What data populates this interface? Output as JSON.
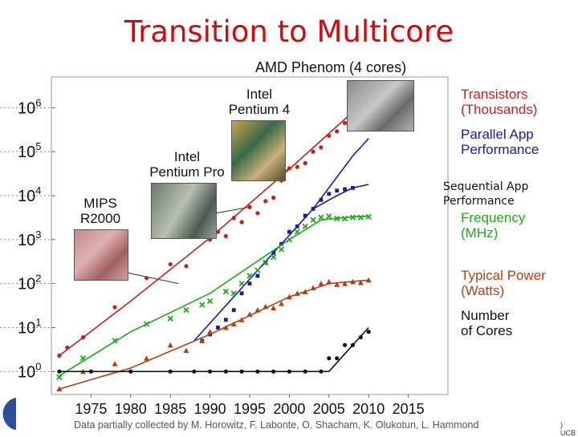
{
  "slide": {
    "title": "Transition to Multicore",
    "subtitle": "AMD Phenom (4 cores)",
    "credit": "Data partially collected by M. Horowitz, F. Labonte, O. Shacham, K. Olukotun, L. Hammond",
    "corner_text": ") UCB"
  },
  "chips": [
    {
      "line1": "Intel",
      "line2": "Pentium 4"
    },
    {
      "line1": "Intel",
      "line2": "Pentium Pro"
    },
    {
      "line1": "MIPS",
      "line2": "R2000"
    }
  ],
  "sequential_label": [
    "Sequential App",
    "Performance"
  ],
  "chart_data": {
    "type": "scatter",
    "title": "Transition to Multicore",
    "xlabel": "",
    "ylabel": "",
    "y_scale": "log",
    "xlim": [
      1970,
      2020
    ],
    "ylim": [
      0.3,
      5000000
    ],
    "x_ticks": [
      "1975",
      "1980",
      "1985",
      "1990",
      "1995",
      "2000",
      "2005",
      "2010",
      "2015"
    ],
    "y_ticks": [
      {
        "base": "10",
        "exp": "0",
        "value": 1
      },
      {
        "base": "10",
        "exp": "1",
        "value": 10
      },
      {
        "base": "10",
        "exp": "2",
        "value": 100
      },
      {
        "base": "10",
        "exp": "3",
        "value": 1000
      },
      {
        "base": "10",
        "exp": "4",
        "value": 10000
      },
      {
        "base": "10",
        "exp": "5",
        "value": 100000
      },
      {
        "base": "10",
        "exp": "6",
        "value": 1000000
      }
    ],
    "series": [
      {
        "name": "Transistors (Thousands)",
        "label_lines": [
          "Transistors",
          "(Thousands)"
        ],
        "marker": "circle",
        "color": "#c42020",
        "points": [
          [
            1971,
            2.3
          ],
          [
            1972,
            3.5
          ],
          [
            1974,
            6
          ],
          [
            1978,
            29
          ],
          [
            1982,
            134
          ],
          [
            1985,
            275
          ],
          [
            1987,
            250
          ],
          [
            1989,
            1200
          ],
          [
            1990,
            1000
          ],
          [
            1991,
            1500
          ],
          [
            1992,
            1200
          ],
          [
            1993,
            3100
          ],
          [
            1994,
            2500
          ],
          [
            1995,
            5500
          ],
          [
            1996,
            4000
          ],
          [
            1997,
            7500
          ],
          [
            1998,
            9000
          ],
          [
            1999,
            22000
          ],
          [
            2000,
            42000
          ],
          [
            2001,
            45000
          ],
          [
            2002,
            55000
          ],
          [
            2003,
            100000
          ],
          [
            2004,
            125000
          ],
          [
            2005,
            230000
          ],
          [
            2006,
            290000
          ],
          [
            2007,
            450000
          ],
          [
            2008,
            800000
          ],
          [
            2009,
            900000
          ],
          [
            2010,
            1170000
          ]
        ],
        "trend": [
          [
            1971,
            2.3
          ],
          [
            1980,
            40
          ],
          [
            1990,
            1100
          ],
          [
            2000,
            40000
          ],
          [
            2008,
            800000
          ],
          [
            2010,
            1600000
          ]
        ]
      },
      {
        "name": "Parallel App Performance",
        "label_lines": [
          "Parallel App",
          "Performance"
        ],
        "marker": "square",
        "color": "#1c1c9c",
        "points": [
          [
            1989,
            5
          ],
          [
            1990,
            7
          ],
          [
            1991,
            10
          ],
          [
            1992,
            15
          ],
          [
            1993,
            25
          ],
          [
            1994,
            60
          ],
          [
            1995,
            100
          ],
          [
            1996,
            150
          ],
          [
            1997,
            300
          ],
          [
            1998,
            500
          ],
          [
            1999,
            800
          ],
          [
            2000,
            1500
          ],
          [
            2001,
            2000
          ],
          [
            2002,
            3500
          ],
          [
            2003,
            5000
          ],
          [
            2004,
            8000
          ],
          [
            2005,
            11000
          ],
          [
            2006,
            13000
          ],
          [
            2007,
            14000
          ],
          [
            2008,
            15000
          ]
        ],
        "trend": [
          [
            1988,
            5
          ],
          [
            1993,
            50
          ],
          [
            1998,
            500
          ],
          [
            2003,
            5000
          ],
          [
            2008,
            80000
          ],
          [
            2010,
            200000
          ]
        ]
      },
      {
        "name": "Sequential App Performance",
        "label_lines": [
          "Sequential App",
          "Performance"
        ],
        "marker": "none",
        "color": "#1c1c9c",
        "points": [],
        "trend": [
          [
            2003,
            5000
          ],
          [
            2006,
            10000
          ],
          [
            2008,
            15000
          ],
          [
            2010,
            18000
          ]
        ]
      },
      {
        "name": "Frequency (MHz)",
        "label_lines": [
          "Frequency",
          "(MHz)"
        ],
        "marker": "x",
        "color": "#1caa1c",
        "points": [
          [
            1971,
            0.74
          ],
          [
            1974,
            2
          ],
          [
            1978,
            5
          ],
          [
            1982,
            12
          ],
          [
            1985,
            16
          ],
          [
            1987,
            25
          ],
          [
            1989,
            33
          ],
          [
            1990,
            40
          ],
          [
            1992,
            66
          ],
          [
            1993,
            60
          ],
          [
            1994,
            100
          ],
          [
            1995,
            150
          ],
          [
            1996,
            200
          ],
          [
            1997,
            300
          ],
          [
            1998,
            400
          ],
          [
            1999,
            600
          ],
          [
            2000,
            1000
          ],
          [
            2001,
            1500
          ],
          [
            2002,
            2000
          ],
          [
            2003,
            2800
          ],
          [
            2004,
            3200
          ],
          [
            2005,
            3400
          ],
          [
            2006,
            3000
          ],
          [
            2007,
            3000
          ],
          [
            2008,
            3200
          ],
          [
            2009,
            3200
          ],
          [
            2010,
            3300
          ]
        ],
        "trend": [
          [
            1971,
            0.8
          ],
          [
            1980,
            8
          ],
          [
            1990,
            60
          ],
          [
            2000,
            1000
          ],
          [
            2004,
            2800
          ],
          [
            2008,
            3300
          ],
          [
            2010,
            3400
          ]
        ]
      },
      {
        "name": "Typical Power (Watts)",
        "label_lines": [
          "Typical Power",
          "(Watts)"
        ],
        "marker": "triangle",
        "color": "#b0401a",
        "points": [
          [
            1971,
            0.4
          ],
          [
            1974,
            1
          ],
          [
            1978,
            1.5
          ],
          [
            1982,
            2
          ],
          [
            1985,
            4
          ],
          [
            1987,
            3
          ],
          [
            1989,
            5
          ],
          [
            1990,
            8
          ],
          [
            1992,
            10
          ],
          [
            1993,
            12
          ],
          [
            1994,
            15
          ],
          [
            1995,
            20
          ],
          [
            1996,
            25
          ],
          [
            1997,
            30
          ],
          [
            1998,
            28
          ],
          [
            1999,
            35
          ],
          [
            2000,
            50
          ],
          [
            2001,
            60
          ],
          [
            2002,
            65
          ],
          [
            2003,
            80
          ],
          [
            2004,
            100
          ],
          [
            2005,
            110
          ],
          [
            2006,
            95
          ],
          [
            2007,
            100
          ],
          [
            2008,
            110
          ],
          [
            2009,
            105
          ],
          [
            2010,
            120
          ]
        ],
        "trend": [
          [
            1971,
            0.4
          ],
          [
            1980,
            1.2
          ],
          [
            1990,
            7
          ],
          [
            2000,
            50
          ],
          [
            2005,
            100
          ],
          [
            2010,
            120
          ]
        ]
      },
      {
        "name": "Number of Cores",
        "label_lines": [
          "Number",
          "of Cores"
        ],
        "marker": "dot",
        "color": "#111111",
        "points": [
          [
            1971,
            1
          ],
          [
            1975,
            1
          ],
          [
            1980,
            1
          ],
          [
            1985,
            1
          ],
          [
            1988,
            1
          ],
          [
            1990,
            1
          ],
          [
            1992,
            1
          ],
          [
            1994,
            1
          ],
          [
            1996,
            1
          ],
          [
            1998,
            1
          ],
          [
            2000,
            1
          ],
          [
            2002,
            1
          ],
          [
            2004,
            1
          ],
          [
            2005,
            2
          ],
          [
            2006,
            2
          ],
          [
            2007,
            4
          ],
          [
            2008,
            4
          ],
          [
            2009,
            6
          ],
          [
            2010,
            8
          ]
        ],
        "trend": [
          [
            1971,
            1
          ],
          [
            2005,
            1
          ],
          [
            2008,
            4
          ],
          [
            2010,
            10
          ]
        ]
      }
    ]
  }
}
